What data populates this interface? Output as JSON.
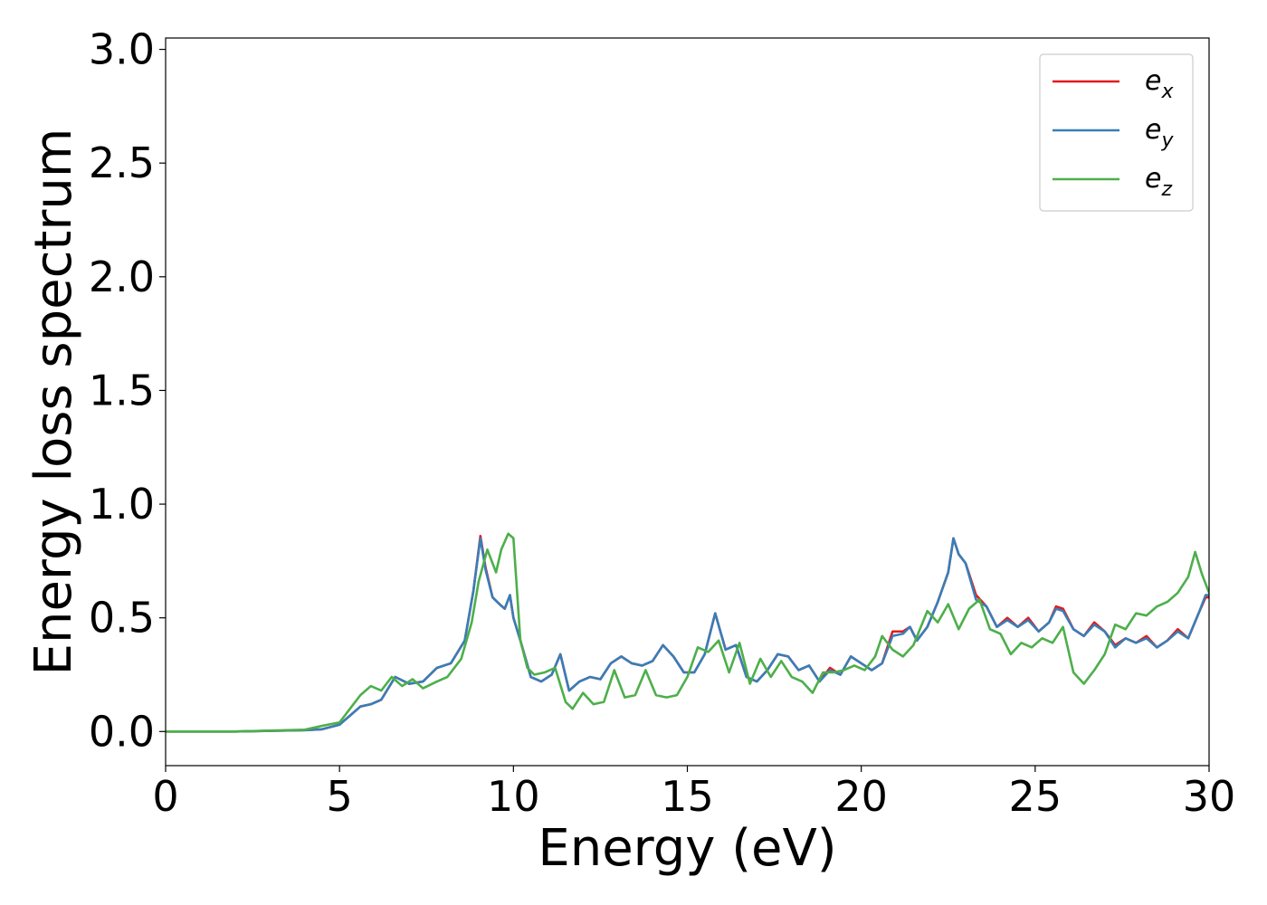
{
  "chart_data": {
    "type": "line",
    "title": "",
    "xlabel": "Energy (eV)",
    "ylabel": "Energy loss spectrum",
    "xlim": [
      0,
      30
    ],
    "ylim": [
      -0.15,
      3.05
    ],
    "xticks": [
      0,
      5,
      10,
      15,
      20,
      25,
      30
    ],
    "yticks": [
      0.0,
      0.5,
      1.0,
      1.5,
      2.0,
      2.5,
      3.0
    ],
    "xtick_labels": [
      "0",
      "5",
      "10",
      "15",
      "20",
      "25",
      "30"
    ],
    "ytick_labels": [
      "0.0",
      "0.5",
      "1.0",
      "1.5",
      "2.0",
      "2.5",
      "3.0"
    ],
    "grid": false,
    "legend_position": "top-right",
    "series": [
      {
        "name": "e_x",
        "label_base": "e",
        "label_sub": "x",
        "color": "#e41a1c",
        "x": [
          0,
          2,
          3,
          4,
          4.5,
          5,
          5.3,
          5.6,
          5.9,
          6.2,
          6.6,
          7.0,
          7.4,
          7.8,
          8.2,
          8.6,
          8.85,
          9.05,
          9.2,
          9.4,
          9.6,
          9.75,
          9.9,
          10.0,
          10.2,
          10.5,
          10.8,
          11.1,
          11.35,
          11.6,
          11.9,
          12.2,
          12.5,
          12.8,
          13.1,
          13.4,
          13.7,
          14.0,
          14.3,
          14.6,
          14.9,
          15.2,
          15.5,
          15.8,
          16.1,
          16.4,
          16.7,
          17.0,
          17.3,
          17.6,
          17.9,
          18.2,
          18.5,
          18.8,
          19.1,
          19.4,
          19.7,
          20.0,
          20.3,
          20.6,
          20.9,
          21.2,
          21.4,
          21.6,
          21.9,
          22.2,
          22.5,
          22.65,
          22.8,
          23.0,
          23.3,
          23.6,
          23.9,
          24.2,
          24.5,
          24.8,
          25.1,
          25.4,
          25.6,
          25.8,
          26.1,
          26.4,
          26.7,
          27.0,
          27.3,
          27.6,
          27.9,
          28.2,
          28.5,
          28.8,
          29.1,
          29.4,
          29.7,
          29.9,
          30.0
        ],
        "y": [
          0.0,
          0.0,
          0.003,
          0.006,
          0.01,
          0.03,
          0.07,
          0.11,
          0.12,
          0.14,
          0.24,
          0.21,
          0.22,
          0.28,
          0.3,
          0.4,
          0.62,
          0.86,
          0.72,
          0.59,
          0.56,
          0.54,
          0.6,
          0.5,
          0.4,
          0.24,
          0.22,
          0.25,
          0.34,
          0.18,
          0.22,
          0.24,
          0.23,
          0.3,
          0.33,
          0.3,
          0.29,
          0.31,
          0.38,
          0.33,
          0.26,
          0.26,
          0.34,
          0.52,
          0.36,
          0.38,
          0.24,
          0.22,
          0.27,
          0.34,
          0.33,
          0.27,
          0.29,
          0.22,
          0.28,
          0.25,
          0.33,
          0.3,
          0.27,
          0.3,
          0.44,
          0.44,
          0.46,
          0.4,
          0.46,
          0.57,
          0.7,
          0.85,
          0.78,
          0.74,
          0.6,
          0.55,
          0.46,
          0.5,
          0.46,
          0.5,
          0.44,
          0.48,
          0.55,
          0.54,
          0.45,
          0.42,
          0.48,
          0.44,
          0.38,
          0.41,
          0.39,
          0.42,
          0.37,
          0.4,
          0.45,
          0.41,
          0.52,
          0.59,
          0.59
        ]
      },
      {
        "name": "e_y",
        "label_base": "e",
        "label_sub": "y",
        "color": "#377eb8",
        "x": [
          0,
          2,
          3,
          4,
          4.5,
          5,
          5.3,
          5.6,
          5.9,
          6.2,
          6.6,
          7.0,
          7.4,
          7.8,
          8.2,
          8.6,
          8.85,
          9.05,
          9.2,
          9.4,
          9.6,
          9.75,
          9.9,
          10.0,
          10.2,
          10.5,
          10.8,
          11.1,
          11.35,
          11.6,
          11.9,
          12.2,
          12.5,
          12.8,
          13.1,
          13.4,
          13.7,
          14.0,
          14.3,
          14.6,
          14.9,
          15.2,
          15.5,
          15.8,
          16.1,
          16.4,
          16.7,
          17.0,
          17.3,
          17.6,
          17.9,
          18.2,
          18.5,
          18.8,
          19.1,
          19.4,
          19.7,
          20.0,
          20.3,
          20.6,
          20.9,
          21.2,
          21.4,
          21.6,
          21.9,
          22.2,
          22.5,
          22.65,
          22.8,
          23.0,
          23.3,
          23.6,
          23.9,
          24.2,
          24.5,
          24.8,
          25.1,
          25.4,
          25.6,
          25.8,
          26.1,
          26.4,
          26.7,
          27.0,
          27.3,
          27.6,
          27.9,
          28.2,
          28.5,
          28.8,
          29.1,
          29.4,
          29.7,
          29.9,
          30.0
        ],
        "y": [
          0.0,
          0.0,
          0.003,
          0.006,
          0.01,
          0.03,
          0.07,
          0.11,
          0.12,
          0.14,
          0.24,
          0.21,
          0.22,
          0.28,
          0.3,
          0.4,
          0.62,
          0.85,
          0.71,
          0.59,
          0.56,
          0.54,
          0.6,
          0.5,
          0.4,
          0.24,
          0.22,
          0.25,
          0.34,
          0.18,
          0.22,
          0.24,
          0.23,
          0.3,
          0.33,
          0.3,
          0.29,
          0.31,
          0.38,
          0.33,
          0.26,
          0.26,
          0.34,
          0.52,
          0.36,
          0.38,
          0.24,
          0.22,
          0.27,
          0.34,
          0.33,
          0.27,
          0.29,
          0.22,
          0.27,
          0.25,
          0.33,
          0.3,
          0.27,
          0.3,
          0.42,
          0.43,
          0.46,
          0.4,
          0.46,
          0.57,
          0.7,
          0.85,
          0.78,
          0.74,
          0.58,
          0.55,
          0.46,
          0.49,
          0.46,
          0.49,
          0.44,
          0.48,
          0.54,
          0.53,
          0.45,
          0.42,
          0.47,
          0.44,
          0.37,
          0.41,
          0.39,
          0.41,
          0.37,
          0.4,
          0.44,
          0.41,
          0.52,
          0.6,
          0.6
        ]
      },
      {
        "name": "e_z",
        "label_base": "e",
        "label_sub": "z",
        "color": "#4daf4a",
        "x": [
          0,
          2,
          3,
          4,
          4.5,
          5,
          5.3,
          5.6,
          5.9,
          6.2,
          6.5,
          6.8,
          7.1,
          7.4,
          7.8,
          8.1,
          8.5,
          8.8,
          9.0,
          9.25,
          9.5,
          9.65,
          9.85,
          10.0,
          10.2,
          10.4,
          10.6,
          10.9,
          11.2,
          11.5,
          11.7,
          12.0,
          12.3,
          12.6,
          12.9,
          13.2,
          13.5,
          13.8,
          14.1,
          14.4,
          14.7,
          15.0,
          15.3,
          15.6,
          15.9,
          16.2,
          16.5,
          16.8,
          17.1,
          17.4,
          17.7,
          18.0,
          18.3,
          18.6,
          18.9,
          19.2,
          19.5,
          19.8,
          20.1,
          20.4,
          20.6,
          20.9,
          21.2,
          21.5,
          21.9,
          22.2,
          22.5,
          22.8,
          23.1,
          23.4,
          23.7,
          24.0,
          24.3,
          24.6,
          24.9,
          25.2,
          25.5,
          25.8,
          26.1,
          26.4,
          26.7,
          27.0,
          27.3,
          27.6,
          27.9,
          28.2,
          28.5,
          28.8,
          29.1,
          29.4,
          29.6,
          29.8,
          30.0
        ],
        "y": [
          0.0,
          0.0,
          0.004,
          0.008,
          0.025,
          0.04,
          0.1,
          0.16,
          0.2,
          0.18,
          0.24,
          0.2,
          0.23,
          0.19,
          0.22,
          0.24,
          0.32,
          0.48,
          0.66,
          0.8,
          0.7,
          0.8,
          0.87,
          0.85,
          0.4,
          0.28,
          0.25,
          0.26,
          0.28,
          0.13,
          0.1,
          0.17,
          0.12,
          0.13,
          0.27,
          0.15,
          0.16,
          0.27,
          0.16,
          0.15,
          0.16,
          0.24,
          0.37,
          0.35,
          0.4,
          0.26,
          0.39,
          0.21,
          0.32,
          0.24,
          0.31,
          0.24,
          0.22,
          0.17,
          0.26,
          0.26,
          0.27,
          0.29,
          0.27,
          0.33,
          0.42,
          0.36,
          0.33,
          0.38,
          0.53,
          0.48,
          0.56,
          0.45,
          0.54,
          0.58,
          0.45,
          0.43,
          0.34,
          0.39,
          0.37,
          0.41,
          0.39,
          0.46,
          0.26,
          0.21,
          0.27,
          0.34,
          0.47,
          0.45,
          0.52,
          0.51,
          0.55,
          0.57,
          0.61,
          0.68,
          0.79,
          0.69,
          0.61
        ]
      }
    ]
  }
}
